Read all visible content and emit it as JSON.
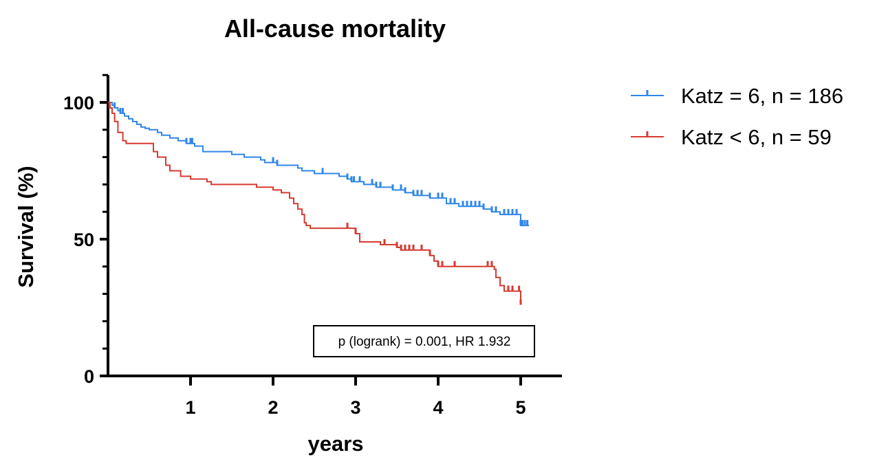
{
  "chart_data": {
    "type": "line",
    "subtype": "kaplan-meier step",
    "title": "All-cause mortality",
    "xlabel": "years",
    "ylabel": "Survival (%)",
    "xlim": [
      0,
      5.5
    ],
    "ylim": [
      0,
      110
    ],
    "xticks": [
      1,
      2,
      3,
      4,
      5
    ],
    "yticks": [
      0,
      50,
      100
    ],
    "legend_position": "top-right (outside plot)",
    "grid": false,
    "annotation": "p (logrank) = 0.001, HR 1.932",
    "series": [
      {
        "name": "Katz = 6, n = 186",
        "color": "#2f86e8",
        "steps": [
          [
            0,
            100
          ],
          [
            0.05,
            99
          ],
          [
            0.08,
            98
          ],
          [
            0.12,
            97
          ],
          [
            0.15,
            96
          ],
          [
            0.2,
            95
          ],
          [
            0.25,
            94
          ],
          [
            0.3,
            93
          ],
          [
            0.35,
            92
          ],
          [
            0.4,
            91
          ],
          [
            0.45,
            90.5
          ],
          [
            0.5,
            90
          ],
          [
            0.6,
            89
          ],
          [
            0.65,
            88
          ],
          [
            0.75,
            87
          ],
          [
            0.85,
            86
          ],
          [
            0.95,
            85
          ],
          [
            1.05,
            84
          ],
          [
            1.15,
            82
          ],
          [
            1.5,
            81
          ],
          [
            1.6,
            81
          ],
          [
            1.65,
            80
          ],
          [
            1.8,
            80
          ],
          [
            1.85,
            79
          ],
          [
            1.9,
            78
          ],
          [
            2.05,
            77
          ],
          [
            2.3,
            76
          ],
          [
            2.35,
            75
          ],
          [
            2.5,
            74
          ],
          [
            2.6,
            74
          ],
          [
            2.8,
            73
          ],
          [
            2.9,
            72
          ],
          [
            2.95,
            71
          ],
          [
            3.1,
            70
          ],
          [
            3.25,
            69
          ],
          [
            3.45,
            68
          ],
          [
            3.6,
            67
          ],
          [
            3.7,
            66
          ],
          [
            3.75,
            66
          ],
          [
            3.9,
            65
          ],
          [
            4.1,
            64
          ],
          [
            4.1,
            63
          ],
          [
            4.25,
            62
          ],
          [
            4.55,
            61
          ],
          [
            4.65,
            60
          ],
          [
            4.75,
            59
          ],
          [
            4.95,
            59
          ],
          [
            5,
            57
          ],
          [
            5.0,
            55
          ],
          [
            5.1,
            55
          ]
        ],
        "censor_x": [
          0.08,
          0.15,
          0.18,
          0.95,
          1.0,
          1.02,
          2.0,
          2.05,
          2.6,
          2.9,
          2.95,
          2.98,
          3.05,
          3.2,
          3.25,
          3.3,
          3.45,
          3.55,
          3.6,
          3.7,
          3.75,
          3.8,
          3.9,
          4.0,
          4.05,
          4.15,
          4.2,
          4.3,
          4.35,
          4.4,
          4.45,
          4.5,
          4.55,
          4.65,
          4.7,
          4.8,
          4.85,
          4.9,
          4.95,
          5.0,
          5.02,
          5.05,
          5.08
        ]
      },
      {
        "name": "Katz < 6, n = 59",
        "color": "#d63a2f",
        "steps": [
          [
            0,
            100
          ],
          [
            0.02,
            98
          ],
          [
            0.05,
            96
          ],
          [
            0.08,
            93
          ],
          [
            0.12,
            89
          ],
          [
            0.18,
            86
          ],
          [
            0.22,
            85
          ],
          [
            0.45,
            85
          ],
          [
            0.55,
            82
          ],
          [
            0.6,
            80
          ],
          [
            0.7,
            77
          ],
          [
            0.75,
            75
          ],
          [
            0.88,
            73
          ],
          [
            1.0,
            72
          ],
          [
            1.2,
            71
          ],
          [
            1.25,
            70
          ],
          [
            1.8,
            69
          ],
          [
            2.0,
            68
          ],
          [
            2.1,
            67
          ],
          [
            2.2,
            65
          ],
          [
            2.25,
            63
          ],
          [
            2.3,
            61
          ],
          [
            2.35,
            59
          ],
          [
            2.38,
            56
          ],
          [
            2.4,
            55
          ],
          [
            2.45,
            54
          ],
          [
            2.9,
            54
          ],
          [
            3.0,
            52
          ],
          [
            3.05,
            49
          ],
          [
            3.3,
            48
          ],
          [
            3.5,
            47
          ],
          [
            3.55,
            46
          ],
          [
            3.9,
            44
          ],
          [
            3.95,
            42
          ],
          [
            4.0,
            40
          ],
          [
            4.5,
            40
          ],
          [
            4.68,
            39
          ],
          [
            4.7,
            36
          ],
          [
            4.75,
            33
          ],
          [
            4.8,
            31
          ],
          [
            4.95,
            31
          ],
          [
            5.0,
            26
          ]
        ],
        "censor_x": [
          0.02,
          2.9,
          3.0,
          3.35,
          3.5,
          3.55,
          3.6,
          3.65,
          3.7,
          3.8,
          3.9,
          4.0,
          4.05,
          4.2,
          4.6,
          4.65,
          4.85,
          4.9,
          4.98,
          5.0
        ]
      }
    ]
  }
}
